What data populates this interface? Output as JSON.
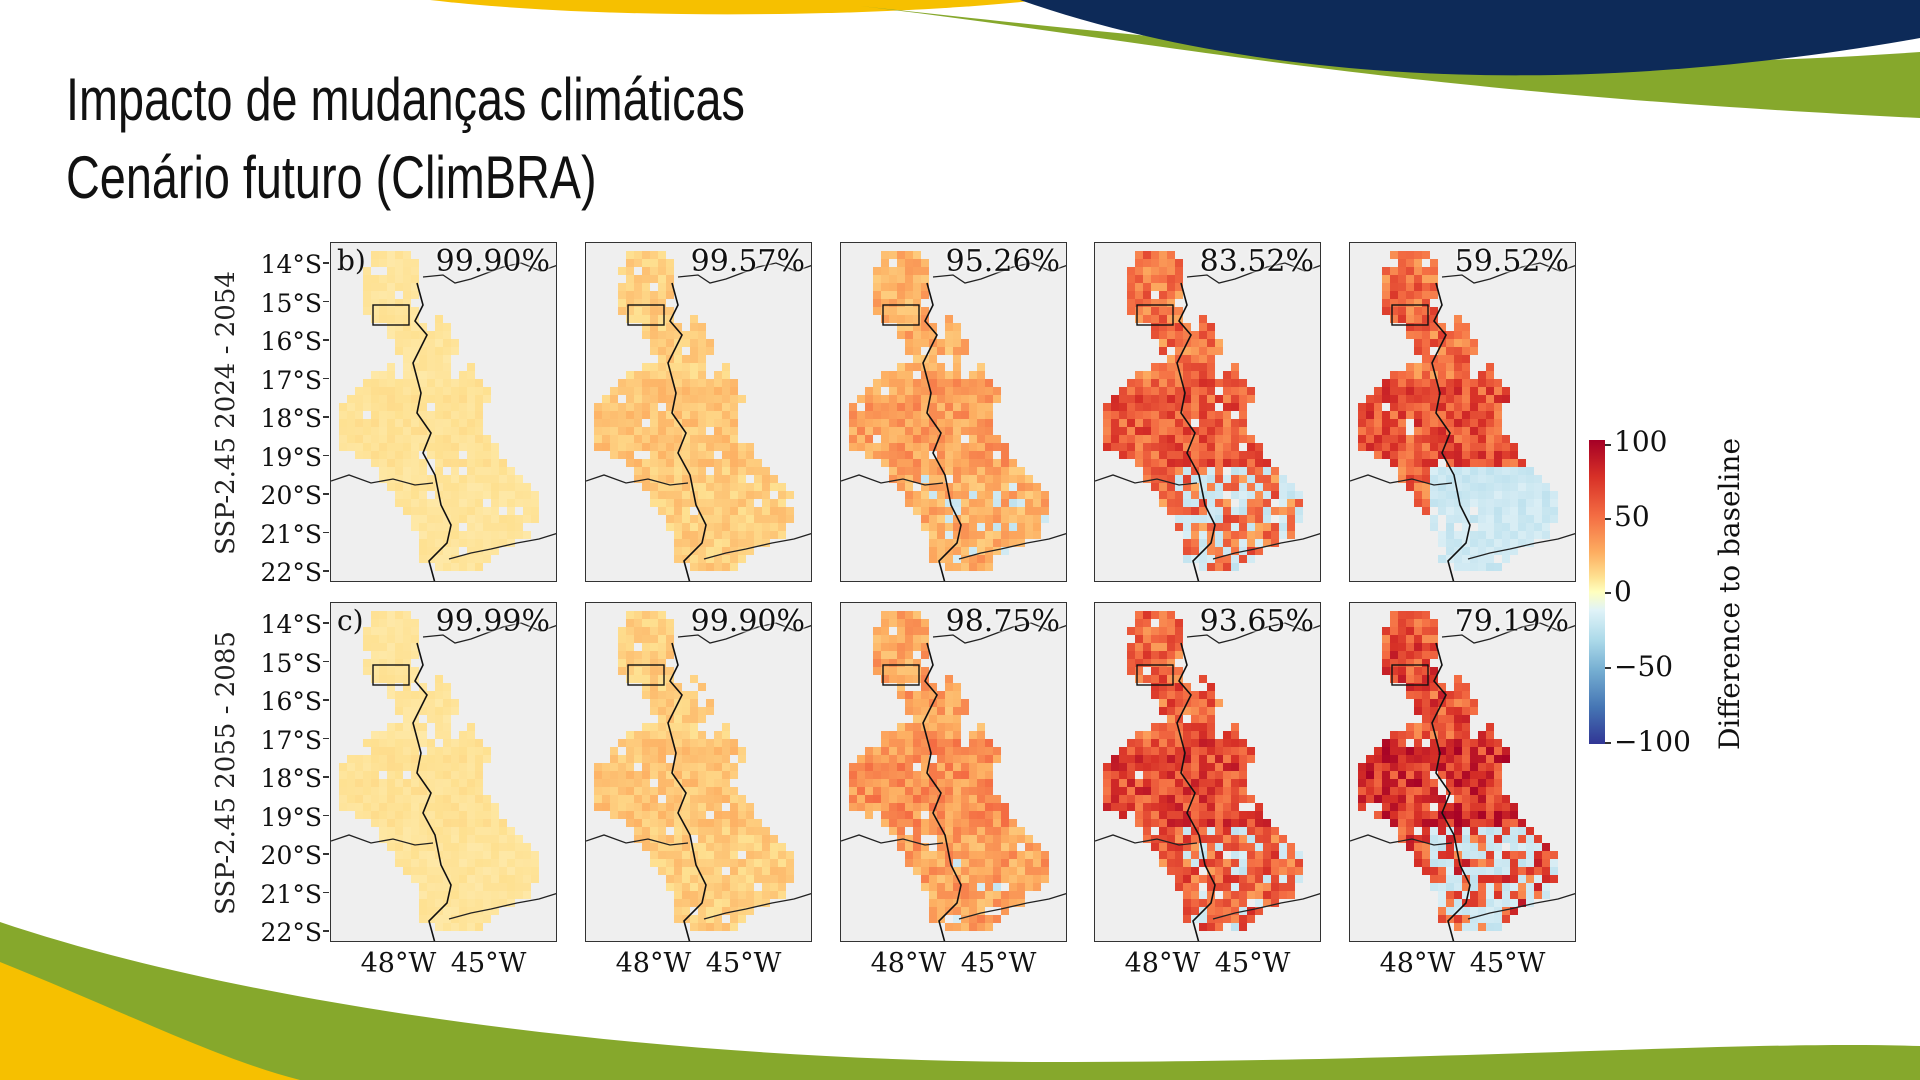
{
  "slide": {
    "title_line1": "Impacto de mudanças climáticas",
    "title_line2": "Cenário futuro (ClimBRA)"
  },
  "colors": {
    "navy": "#0d2a58",
    "green": "#86a82c",
    "yellow": "#f6c000",
    "no_data": "#efefef"
  },
  "figure": {
    "rows": [
      {
        "label": "SSP-2.45 2024 - 2054",
        "letter": "b)",
        "panels": [
          {
            "percent": "99.90%",
            "intensity": 0.2,
            "negative": 0.0
          },
          {
            "percent": "99.57%",
            "intensity": 0.35,
            "negative": 0.0
          },
          {
            "percent": "95.26%",
            "intensity": 0.5,
            "negative": 0.05
          },
          {
            "percent": "83.52%",
            "intensity": 0.75,
            "negative": 0.18
          },
          {
            "percent": "59.52%",
            "intensity": 0.78,
            "negative": 0.4
          }
        ]
      },
      {
        "label": "SSP-2.45 2055 - 2085",
        "letter": "c)",
        "panels": [
          {
            "percent": "99.99%",
            "intensity": 0.2,
            "negative": 0.0
          },
          {
            "percent": "99.90%",
            "intensity": 0.35,
            "negative": 0.0
          },
          {
            "percent": "98.75%",
            "intensity": 0.55,
            "negative": 0.01
          },
          {
            "percent": "93.65%",
            "intensity": 0.82,
            "negative": 0.06
          },
          {
            "percent": "79.19%",
            "intensity": 0.9,
            "negative": 0.2
          }
        ]
      }
    ],
    "lat_ticks": [
      "14°S",
      "15°S",
      "16°S",
      "17°S",
      "18°S",
      "19°S",
      "20°S",
      "21°S",
      "22°S"
    ],
    "lon_ticks": "48°W 45°W",
    "colorbar": {
      "label": "Difference to baseline",
      "ticks": [
        "100",
        "50",
        "0",
        "−50",
        "−100"
      ],
      "min": -100,
      "max": 100,
      "colormap": "RdYlBu_r"
    }
  }
}
